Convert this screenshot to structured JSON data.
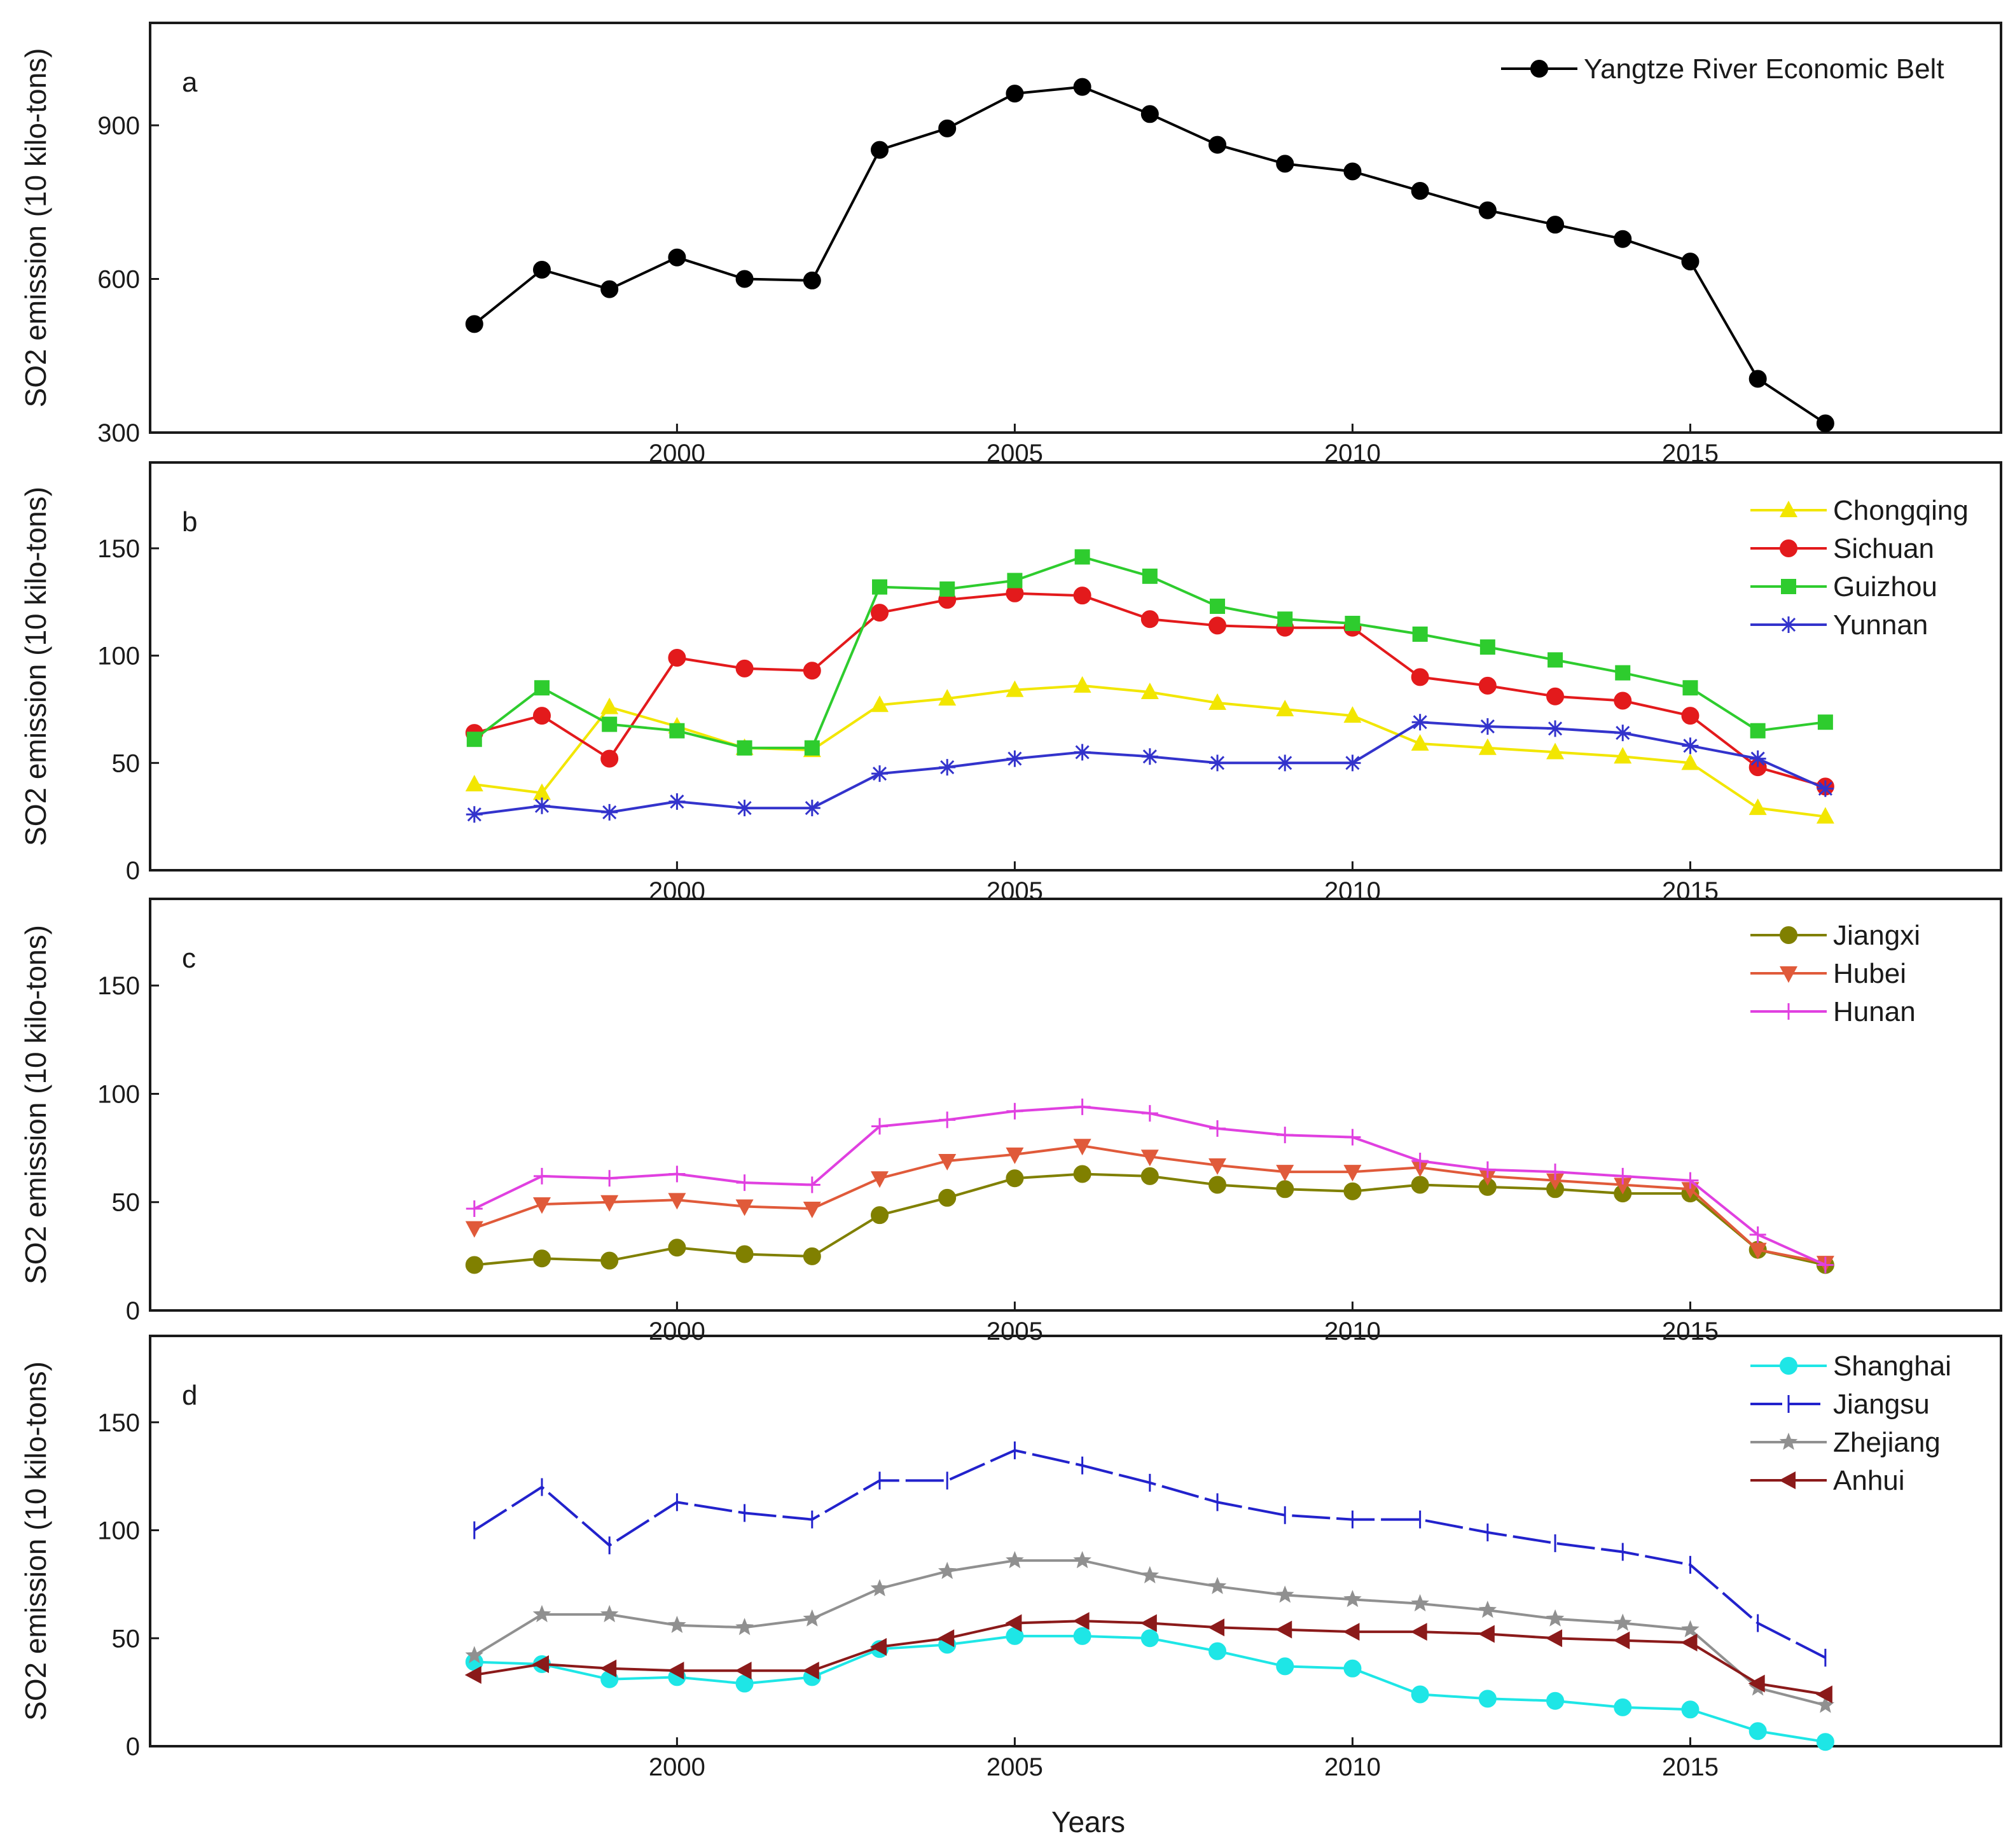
{
  "chart_data": {
    "type": "line",
    "shared_xlabel": "Years",
    "x": [
      1997,
      1998,
      1999,
      2000,
      2001,
      2002,
      2003,
      2004,
      2005,
      2006,
      2007,
      2008,
      2009,
      2010,
      2011,
      2012,
      2013,
      2014,
      2015,
      2016,
      2017
    ],
    "xlim": [
      1992.2,
      2019.6
    ],
    "xticks": [
      2000,
      2005,
      2010,
      2015
    ],
    "panels": [
      {
        "panel_label": "a",
        "ylabel": "SO2 emission (10 kilo-tons)",
        "ylim": [
          300,
          1100
        ],
        "yticks": [
          300,
          600,
          900
        ],
        "series": [
          {
            "name": "Yangtze River Economic Belt",
            "color": "#000000",
            "marker": "circle",
            "values": [
              512,
              618,
              580,
              642,
              600,
              597,
              852,
              894,
              962,
              975,
              922,
              862,
              825,
              810,
              772,
              734,
              706,
              678,
              634,
              405,
              318
            ]
          }
        ]
      },
      {
        "panel_label": "b",
        "ylabel": "SO2 emission (10 kilo-tons)",
        "ylim": [
          0,
          190
        ],
        "yticks": [
          0,
          50,
          100,
          150
        ],
        "series": [
          {
            "name": "Chongqing",
            "color": "#f2e600",
            "marker": "triangle",
            "values": [
              40,
              36,
              76,
              67,
              57,
              56,
              77,
              80,
              84,
              86,
              83,
              78,
              75,
              72,
              59,
              57,
              55,
              53,
              50,
              29,
              25
            ]
          },
          {
            "name": "Sichuan",
            "color": "#e31a1c",
            "marker": "circle",
            "values": [
              64,
              72,
              52,
              99,
              94,
              93,
              120,
              126,
              129,
              128,
              117,
              114,
              113,
              113,
              90,
              86,
              81,
              79,
              72,
              48,
              39
            ]
          },
          {
            "name": "Guizhou",
            "color": "#2ecc2e",
            "marker": "square",
            "values": [
              61,
              85,
              68,
              65,
              57,
              57,
              132,
              131,
              135,
              146,
              137,
              123,
              117,
              115,
              110,
              104,
              98,
              92,
              85,
              65,
              69
            ]
          },
          {
            "name": "Yunnan",
            "color": "#3333cc",
            "marker": "asterisk",
            "values": [
              26,
              30,
              27,
              32,
              29,
              29,
              45,
              48,
              52,
              55,
              53,
              50,
              50,
              50,
              69,
              67,
              66,
              64,
              58,
              52,
              38
            ]
          }
        ]
      },
      {
        "panel_label": "c",
        "ylabel": "SO2 emission (10 kilo-tons)",
        "ylim": [
          0,
          190
        ],
        "yticks": [
          0,
          50,
          100,
          150
        ],
        "series": [
          {
            "name": "Jiangxi",
            "color": "#808000",
            "marker": "circle",
            "values": [
              21,
              24,
              23,
              29,
              26,
              25,
              44,
              52,
              61,
              63,
              62,
              58,
              56,
              55,
              58,
              57,
              56,
              54,
              54,
              28,
              21
            ]
          },
          {
            "name": "Hubei",
            "color": "#e05a3a",
            "marker": "triangle-down",
            "values": [
              38,
              49,
              50,
              51,
              48,
              47,
              61,
              69,
              72,
              76,
              71,
              67,
              64,
              64,
              66,
              62,
              60,
              58,
              56,
              28,
              22
            ]
          },
          {
            "name": "Hunan",
            "color": "#e040e0",
            "marker": "plus",
            "values": [
              47,
              62,
              61,
              63,
              59,
              58,
              85,
              88,
              92,
              94,
              91,
              84,
              81,
              80,
              69,
              65,
              64,
              62,
              60,
              35,
              21
            ]
          }
        ]
      },
      {
        "panel_label": "d",
        "ylabel": "SO2 emission (10 kilo-tons)",
        "ylim": [
          0,
          190
        ],
        "yticks": [
          0,
          50,
          100,
          150
        ],
        "series": [
          {
            "name": "Shanghai",
            "color": "#1ee6e6",
            "marker": "circle",
            "values": [
              39,
              38,
              31,
              32,
              29,
              32,
              45,
              47,
              51,
              51,
              50,
              44,
              37,
              36,
              24,
              22,
              21,
              18,
              17,
              7,
              2
            ]
          },
          {
            "name": "Jiangsu",
            "color": "#2222cc",
            "marker": "vbar",
            "dash": true,
            "values": [
              100,
              120,
              93,
              113,
              108,
              105,
              123,
              123,
              137,
              130,
              122,
              113,
              107,
              105,
              105,
              99,
              94,
              90,
              84,
              57,
              41
            ]
          },
          {
            "name": "Zhejiang",
            "color": "#909090",
            "marker": "star",
            "values": [
              42,
              61,
              61,
              56,
              55,
              59,
              73,
              81,
              86,
              86,
              79,
              74,
              70,
              68,
              66,
              63,
              59,
              57,
              54,
              27,
              19
            ]
          },
          {
            "name": "Anhui",
            "color": "#8b1a1a",
            "marker": "triangle-left",
            "values": [
              33,
              38,
              36,
              35,
              35,
              35,
              46,
              50,
              57,
              58,
              57,
              55,
              54,
              53,
              53,
              52,
              50,
              49,
              48,
              29,
              24
            ]
          }
        ]
      }
    ]
  }
}
